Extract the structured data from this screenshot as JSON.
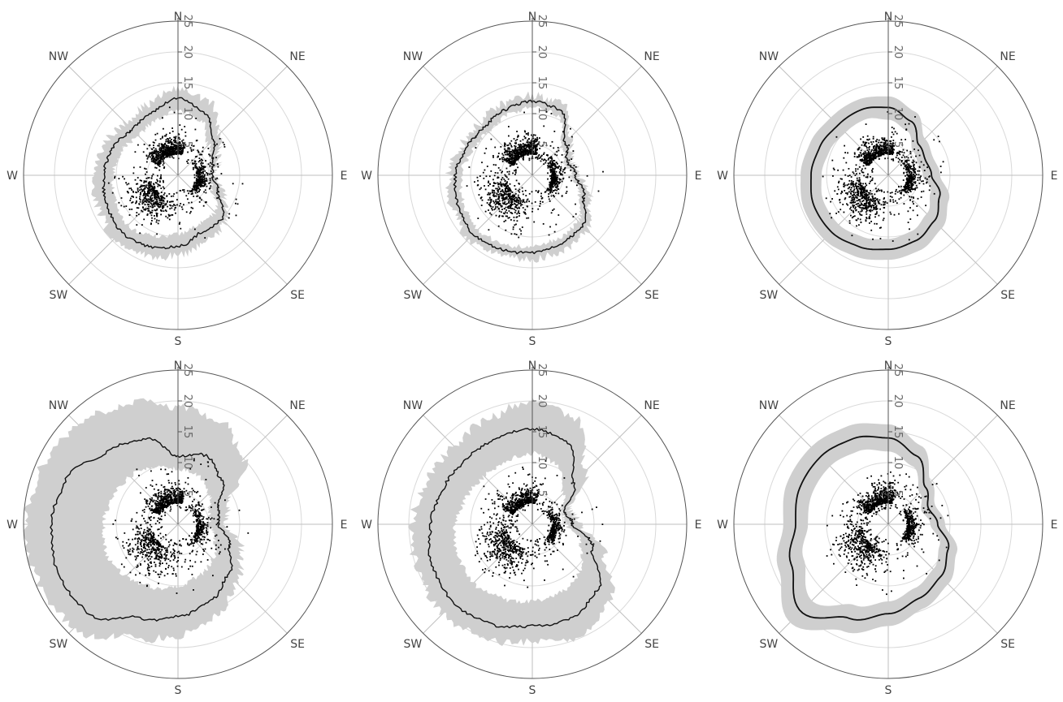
{
  "colors": {
    "band": "#cfcfcf",
    "line": "#111111",
    "points": "#000000",
    "grid": "#d9d9d9",
    "spokes": "#bfbfbf",
    "outer_ring": "#555555",
    "text": "#444444"
  },
  "directions": [
    "N",
    "NE",
    "E",
    "SE",
    "S",
    "SW",
    "W",
    "NW"
  ],
  "radial_ticks": [
    "5",
    "10",
    "15",
    "20",
    "25"
  ],
  "chart_data": [
    {
      "type": "scatter",
      "panel": "top-left",
      "rlim": [
        0,
        25
      ],
      "grid": true,
      "theta_labels": [
        "N",
        "NE",
        "E",
        "SE",
        "S",
        "SW",
        "W",
        "NW"
      ],
      "r_ticks": [
        5,
        10,
        15,
        20,
        25
      ],
      "quantile_line_r": [
        12.5,
        11.0,
        8.0,
        6.0,
        5.5,
        7.0,
        10.0,
        10.0,
        11.5,
        12.5,
        13.0,
        12.5,
        12.0,
        11.5,
        10.5,
        11.0,
        12.5
      ],
      "band_lower_r": [
        10.5,
        9.5,
        7.0,
        5.5,
        5.0,
        6.0,
        8.5,
        8.5,
        9.5,
        10.5,
        11.5,
        11.0,
        10.5,
        10.0,
        9.0,
        9.5,
        10.5
      ],
      "band_upper_r": [
        14.0,
        13.0,
        9.5,
        7.0,
        6.0,
        8.0,
        11.0,
        11.5,
        13.0,
        14.0,
        14.5,
        14.0,
        13.5,
        13.0,
        12.0,
        12.5,
        14.0
      ],
      "smooth": false
    },
    {
      "type": "scatter",
      "panel": "top-middle",
      "rlim": [
        0,
        25
      ],
      "grid": true,
      "theta_labels": [
        "N",
        "NE",
        "E",
        "SE",
        "S",
        "SW",
        "W",
        "NW"
      ],
      "r_ticks": [
        5,
        10,
        15,
        20,
        25
      ],
      "quantile_line_r": [
        12.0,
        11.5,
        7.5,
        6.0,
        7.0,
        9.0,
        11.5,
        12.0,
        12.5,
        13.0,
        13.5,
        13.0,
        12.5,
        11.5,
        11.0,
        11.5,
        12.0
      ],
      "band_lower_r": [
        11.0,
        10.5,
        6.8,
        5.5,
        6.3,
        8.2,
        10.5,
        11.0,
        11.5,
        12.0,
        12.5,
        12.0,
        11.5,
        10.5,
        10.0,
        10.5,
        11.0
      ],
      "band_upper_r": [
        13.0,
        12.5,
        8.5,
        6.8,
        7.7,
        10.0,
        12.5,
        13.2,
        13.5,
        14.0,
        14.5,
        14.0,
        13.5,
        12.5,
        12.0,
        12.5,
        13.0
      ],
      "smooth": false
    },
    {
      "type": "scatter",
      "panel": "top-right",
      "rlim": [
        0,
        25
      ],
      "grid": true,
      "theta_labels": [
        "N",
        "NE",
        "E",
        "SE",
        "S",
        "SW",
        "W",
        "NW"
      ],
      "r_ticks": [
        5,
        10,
        15,
        20,
        25
      ],
      "quantile_line_r": [
        11.0,
        9.5,
        7.0,
        6.5,
        7.0,
        9.0,
        10.5,
        11.5,
        12.0,
        12.5,
        13.0,
        13.0,
        12.5,
        12.0,
        11.5,
        11.5,
        11.0
      ],
      "band_lower_r": [
        9.0,
        7.8,
        5.6,
        5.2,
        5.6,
        7.4,
        8.8,
        9.8,
        10.3,
        10.8,
        11.3,
        11.3,
        10.8,
        10.3,
        9.8,
        9.8,
        9.0
      ],
      "band_upper_r": [
        12.8,
        11.2,
        8.4,
        7.8,
        8.4,
        10.6,
        12.2,
        13.2,
        13.7,
        14.2,
        14.7,
        14.7,
        14.2,
        13.7,
        13.2,
        13.2,
        12.8
      ],
      "smooth": true
    },
    {
      "type": "scatter",
      "panel": "bottom-left",
      "rlim": [
        0,
        25
      ],
      "grid": true,
      "theta_labels": [
        "N",
        "NE",
        "E",
        "SE",
        "S",
        "SW",
        "W",
        "NW"
      ],
      "r_ticks": [
        5,
        10,
        15,
        20,
        25
      ],
      "quantile_line_r": [
        11.0,
        12.0,
        10.0,
        7.0,
        6.5,
        9.0,
        11.5,
        13.5,
        15.0,
        16.5,
        20.5,
        21.0,
        20.5,
        19.5,
        16.5,
        15.0,
        11.0
      ],
      "band_lower_r": [
        9.0,
        8.5,
        7.0,
        5.5,
        5.0,
        6.5,
        8.0,
        9.0,
        10.0,
        11.0,
        12.0,
        12.5,
        12.0,
        11.5,
        11.0,
        10.0,
        9.0
      ],
      "band_upper_r": [
        19.0,
        18.0,
        15.0,
        8.5,
        7.5,
        11.0,
        13.5,
        16.0,
        18.0,
        20.0,
        24.0,
        24.5,
        24.5,
        24.0,
        23.0,
        21.0,
        19.0
      ],
      "smooth": false
    },
    {
      "type": "scatter",
      "panel": "bottom-middle",
      "rlim": [
        0,
        25
      ],
      "grid": true,
      "theta_labels": [
        "N",
        "NE",
        "E",
        "SE",
        "S",
        "SW",
        "W",
        "NW"
      ],
      "r_ticks": [
        5,
        10,
        15,
        20,
        25
      ],
      "quantile_line_r": [
        15.5,
        14.5,
        9.5,
        5.5,
        6.5,
        10.5,
        15.0,
        16.5,
        16.5,
        17.5,
        18.0,
        17.5,
        16.5,
        15.5,
        15.0,
        15.0,
        15.5
      ],
      "band_lower_r": [
        11.5,
        10.5,
        7.0,
        5.0,
        5.5,
        8.5,
        11.0,
        12.0,
        12.5,
        13.0,
        13.5,
        13.0,
        12.5,
        11.5,
        11.0,
        11.0,
        11.5
      ],
      "band_upper_r": [
        20.0,
        18.5,
        12.0,
        6.5,
        7.5,
        12.5,
        17.5,
        20.0,
        19.0,
        20.0,
        20.5,
        20.0,
        19.5,
        18.5,
        18.0,
        18.5,
        20.0
      ],
      "smooth": false
    },
    {
      "type": "scatter",
      "panel": "bottom-right",
      "rlim": [
        0,
        25
      ],
      "grid": true,
      "theta_labels": [
        "N",
        "NE",
        "E",
        "SE",
        "S",
        "SW",
        "W",
        "NW"
      ],
      "r_ticks": [
        5,
        10,
        15,
        20,
        25
      ],
      "quantile_line_r": [
        14.0,
        12.0,
        8.5,
        7.0,
        8.0,
        10.5,
        12.0,
        13.0,
        14.5,
        16.5,
        20.0,
        17.0,
        15.0,
        15.5,
        15.5,
        15.0,
        14.0
      ],
      "band_lower_r": [
        11.8,
        10.2,
        7.2,
        5.8,
        6.8,
        9.0,
        10.3,
        11.2,
        12.5,
        14.2,
        17.5,
        14.8,
        13.0,
        13.3,
        13.3,
        12.8,
        11.8
      ],
      "band_upper_r": [
        16.2,
        13.8,
        9.8,
        8.2,
        9.2,
        12.0,
        13.7,
        14.8,
        16.5,
        18.8,
        22.5,
        19.2,
        17.0,
        17.7,
        17.7,
        17.2,
        16.2
      ],
      "smooth": true
    }
  ]
}
